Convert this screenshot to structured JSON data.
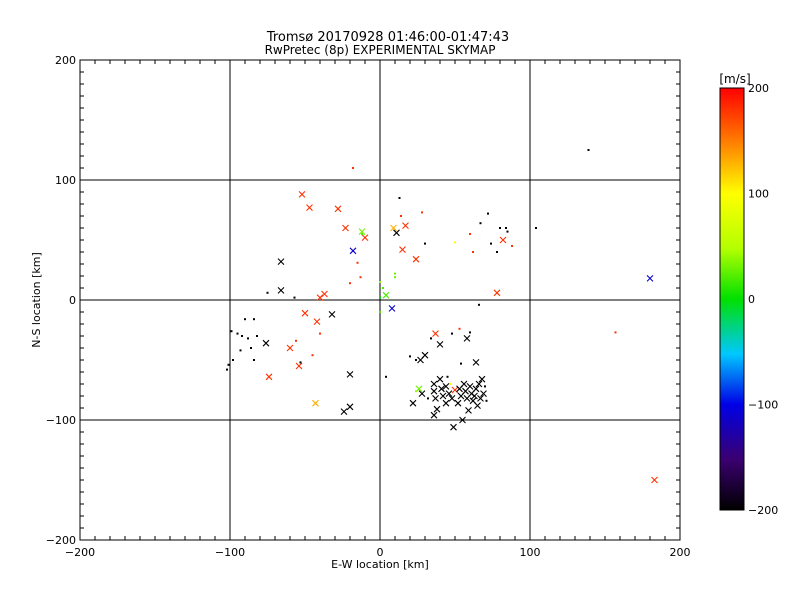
{
  "chart_data": {
    "type": "scatter",
    "title": "Tromsø 20170928 01:46:00-01:47:43",
    "subtitle": "RwPretec (8p) EXPERIMENTAL SKYMAP",
    "xlabel": "E-W location [km]",
    "ylabel": "N-S location [km]",
    "xlim": [
      -200,
      200
    ],
    "ylim": [
      -200,
      200
    ],
    "xticks": [
      -200,
      -100,
      0,
      100,
      200
    ],
    "yticks": [
      -200,
      -100,
      0,
      100,
      200
    ],
    "xtick_labels": [
      "−200",
      "−100",
      "0",
      "100",
      "200"
    ],
    "ytick_labels": [
      "−200",
      "−100",
      "0",
      "100",
      "200"
    ],
    "grid": true,
    "colorbar": {
      "label": "[m/s]",
      "range": [
        -200,
        200
      ],
      "ticks": [
        200,
        100,
        0,
        -100,
        -200
      ],
      "tick_labels": [
        "200",
        "100",
        "0",
        "−100",
        "−200"
      ]
    },
    "points": [
      {
        "x": -52,
        "y": 88,
        "v": 180,
        "m": "x"
      },
      {
        "x": -47,
        "y": 77,
        "v": 180,
        "m": "x"
      },
      {
        "x": -28,
        "y": 76,
        "v": 180,
        "m": "x"
      },
      {
        "x": -23,
        "y": 60,
        "v": 180,
        "m": "x"
      },
      {
        "x": -18,
        "y": 41,
        "v": -110,
        "m": "x"
      },
      {
        "x": -18,
        "y": 110,
        "v": 180,
        "m": "d"
      },
      {
        "x": -12,
        "y": 57,
        "v": 30,
        "m": "x"
      },
      {
        "x": -10,
        "y": 52,
        "v": 180,
        "m": "x"
      },
      {
        "x": -12,
        "y": 55,
        "v": 20,
        "m": "d"
      },
      {
        "x": -15,
        "y": 31,
        "v": 180,
        "m": "d"
      },
      {
        "x": -13,
        "y": 19,
        "v": 180,
        "m": "d"
      },
      {
        "x": -20,
        "y": 14,
        "v": 180,
        "m": "d"
      },
      {
        "x": 9,
        "y": 60,
        "v": 130,
        "m": "x"
      },
      {
        "x": 11,
        "y": 56,
        "v": -200,
        "m": "x"
      },
      {
        "x": 13,
        "y": 85,
        "v": -200,
        "m": "d"
      },
      {
        "x": 14,
        "y": 70,
        "v": 180,
        "m": "d"
      },
      {
        "x": 17,
        "y": 62,
        "v": 180,
        "m": "x"
      },
      {
        "x": 15,
        "y": 42,
        "v": 180,
        "m": "x"
      },
      {
        "x": 24,
        "y": 34,
        "v": 180,
        "m": "x"
      },
      {
        "x": 28,
        "y": 73,
        "v": 180,
        "m": "d"
      },
      {
        "x": 30,
        "y": 47,
        "v": -200,
        "m": "d"
      },
      {
        "x": 10,
        "y": 19,
        "v": 30,
        "m": "d"
      },
      {
        "x": 10,
        "y": 22,
        "v": 30,
        "m": "d"
      },
      {
        "x": 4,
        "y": 4,
        "v": 20,
        "m": "x"
      },
      {
        "x": 8,
        "y": -7,
        "v": -110,
        "m": "x"
      },
      {
        "x": 0,
        "y": 2,
        "v": 0,
        "m": "d"
      },
      {
        "x": 2,
        "y": 10,
        "v": 20,
        "m": "d"
      },
      {
        "x": 0,
        "y": -10,
        "v": 20,
        "m": "d"
      },
      {
        "x": 0,
        "y": 15,
        "v": 40,
        "m": "d"
      },
      {
        "x": 50,
        "y": 48,
        "v": 100,
        "m": "d"
      },
      {
        "x": 60,
        "y": 55,
        "v": 180,
        "m": "d"
      },
      {
        "x": 62,
        "y": 40,
        "v": 180,
        "m": "d"
      },
      {
        "x": 67,
        "y": 64,
        "v": -200,
        "m": "d"
      },
      {
        "x": 72,
        "y": 72,
        "v": -200,
        "m": "d"
      },
      {
        "x": 74,
        "y": 47,
        "v": -200,
        "m": "d"
      },
      {
        "x": 78,
        "y": 40,
        "v": -200,
        "m": "d"
      },
      {
        "x": 82,
        "y": 50,
        "v": 180,
        "m": "x"
      },
      {
        "x": 84,
        "y": 60,
        "v": -200,
        "m": "d"
      },
      {
        "x": 85,
        "y": 57,
        "v": -200,
        "m": "d"
      },
      {
        "x": 80,
        "y": 60,
        "v": -200,
        "m": "d"
      },
      {
        "x": 88,
        "y": 45,
        "v": 180,
        "m": "d"
      },
      {
        "x": 104,
        "y": 60,
        "v": -200,
        "m": "d"
      },
      {
        "x": 78,
        "y": 6,
        "v": 180,
        "m": "x"
      },
      {
        "x": 139,
        "y": 125,
        "v": -200,
        "m": "d"
      },
      {
        "x": 180,
        "y": 18,
        "v": -110,
        "m": "x"
      },
      {
        "x": 157,
        "y": -27,
        "v": 180,
        "m": "d"
      },
      {
        "x": 183,
        "y": -150,
        "v": 180,
        "m": "x"
      },
      {
        "x": -66,
        "y": 32,
        "v": -200,
        "m": "x"
      },
      {
        "x": -66,
        "y": 8,
        "v": -200,
        "m": "x"
      },
      {
        "x": -75,
        "y": 6,
        "v": -200,
        "m": "d"
      },
      {
        "x": -57,
        "y": 2,
        "v": -200,
        "m": "d"
      },
      {
        "x": -40,
        "y": 2,
        "v": 180,
        "m": "x"
      },
      {
        "x": -37,
        "y": 5,
        "v": 180,
        "m": "x"
      },
      {
        "x": -50,
        "y": -11,
        "v": 180,
        "m": "x"
      },
      {
        "x": -42,
        "y": -18,
        "v": 180,
        "m": "x"
      },
      {
        "x": -32,
        "y": -12,
        "v": -200,
        "m": "x"
      },
      {
        "x": -40,
        "y": -28,
        "v": 180,
        "m": "d"
      },
      {
        "x": -56,
        "y": -34,
        "v": 180,
        "m": "d"
      },
      {
        "x": -60,
        "y": -40,
        "v": 180,
        "m": "x"
      },
      {
        "x": -54,
        "y": -55,
        "v": 180,
        "m": "x"
      },
      {
        "x": -53,
        "y": -52,
        "v": -200,
        "m": "d"
      },
      {
        "x": -45,
        "y": -46,
        "v": 180,
        "m": "d"
      },
      {
        "x": -76,
        "y": -36,
        "v": -200,
        "m": "x"
      },
      {
        "x": -74,
        "y": -64,
        "v": 180,
        "m": "x"
      },
      {
        "x": -99,
        "y": -26,
        "v": -200,
        "m": "d"
      },
      {
        "x": -95,
        "y": -28,
        "v": -200,
        "m": "d"
      },
      {
        "x": -92,
        "y": -30,
        "v": -200,
        "m": "d"
      },
      {
        "x": -88,
        "y": -32,
        "v": -200,
        "m": "d"
      },
      {
        "x": -82,
        "y": -30,
        "v": -200,
        "m": "d"
      },
      {
        "x": -90,
        "y": -16,
        "v": -200,
        "m": "d"
      },
      {
        "x": -84,
        "y": -16,
        "v": -200,
        "m": "d"
      },
      {
        "x": -86,
        "y": -40,
        "v": -200,
        "m": "d"
      },
      {
        "x": -93,
        "y": -42,
        "v": -200,
        "m": "d"
      },
      {
        "x": -98,
        "y": -50,
        "v": -200,
        "m": "d"
      },
      {
        "x": -101,
        "y": -54,
        "v": -200,
        "m": "d"
      },
      {
        "x": -102,
        "y": -58,
        "v": -200,
        "m": "d"
      },
      {
        "x": -84,
        "y": -50,
        "v": -200,
        "m": "d"
      },
      {
        "x": -24,
        "y": -93,
        "v": -200,
        "m": "x"
      },
      {
        "x": -20,
        "y": -89,
        "v": -200,
        "m": "x"
      },
      {
        "x": -20,
        "y": -62,
        "v": -200,
        "m": "x"
      },
      {
        "x": -43,
        "y": -86,
        "v": 130,
        "m": "x"
      },
      {
        "x": 4,
        "y": -64,
        "v": -200,
        "m": "d"
      },
      {
        "x": 20,
        "y": -47,
        "v": -200,
        "m": "d"
      },
      {
        "x": 24,
        "y": -50,
        "v": -200,
        "m": "d"
      },
      {
        "x": 27,
        "y": -50,
        "v": -200,
        "m": "x"
      },
      {
        "x": 30,
        "y": -46,
        "v": -200,
        "m": "x"
      },
      {
        "x": 34,
        "y": -32,
        "v": -200,
        "m": "d"
      },
      {
        "x": 37,
        "y": -28,
        "v": 180,
        "m": "x"
      },
      {
        "x": 40,
        "y": -37,
        "v": -200,
        "m": "x"
      },
      {
        "x": 48,
        "y": -28,
        "v": -200,
        "m": "d"
      },
      {
        "x": 53,
        "y": -24,
        "v": 180,
        "m": "d"
      },
      {
        "x": 58,
        "y": -32,
        "v": -200,
        "m": "x"
      },
      {
        "x": 60,
        "y": -27,
        "v": -200,
        "m": "d"
      },
      {
        "x": 66,
        "y": -4,
        "v": -200,
        "m": "d"
      },
      {
        "x": 64,
        "y": -52,
        "v": -200,
        "m": "x"
      },
      {
        "x": 54,
        "y": -53,
        "v": -200,
        "m": "d"
      },
      {
        "x": 26,
        "y": -74,
        "v": 30,
        "m": "x"
      },
      {
        "x": 24,
        "y": -76,
        "v": 40,
        "m": "d"
      },
      {
        "x": 22,
        "y": -86,
        "v": -200,
        "m": "x"
      },
      {
        "x": 28,
        "y": -78,
        "v": -200,
        "m": "x"
      },
      {
        "x": 32,
        "y": -82,
        "v": -200,
        "m": "d"
      },
      {
        "x": 36,
        "y": -70,
        "v": -200,
        "m": "x"
      },
      {
        "x": 36,
        "y": -76,
        "v": -200,
        "m": "x"
      },
      {
        "x": 37,
        "y": -82,
        "v": -200,
        "m": "x"
      },
      {
        "x": 38,
        "y": -91,
        "v": -200,
        "m": "x"
      },
      {
        "x": 36,
        "y": -96,
        "v": -200,
        "m": "x"
      },
      {
        "x": 40,
        "y": -66,
        "v": -200,
        "m": "x"
      },
      {
        "x": 41,
        "y": -74,
        "v": -200,
        "m": "x"
      },
      {
        "x": 42,
        "y": -80,
        "v": -200,
        "m": "x"
      },
      {
        "x": 44,
        "y": -86,
        "v": -200,
        "m": "x"
      },
      {
        "x": 44,
        "y": -72,
        "v": -200,
        "m": "x"
      },
      {
        "x": 46,
        "y": -78,
        "v": -200,
        "m": "x"
      },
      {
        "x": 47,
        "y": -70,
        "v": 100,
        "m": "d"
      },
      {
        "x": 48,
        "y": -82,
        "v": -200,
        "m": "x"
      },
      {
        "x": 49,
        "y": -106,
        "v": -200,
        "m": "x"
      },
      {
        "x": 50,
        "y": -75,
        "v": 180,
        "m": "x"
      },
      {
        "x": 52,
        "y": -86,
        "v": -200,
        "m": "x"
      },
      {
        "x": 53,
        "y": -74,
        "v": -200,
        "m": "x"
      },
      {
        "x": 54,
        "y": -80,
        "v": -200,
        "m": "x"
      },
      {
        "x": 55,
        "y": -100,
        "v": -200,
        "m": "x"
      },
      {
        "x": 56,
        "y": -70,
        "v": -200,
        "m": "x"
      },
      {
        "x": 57,
        "y": -76,
        "v": -200,
        "m": "x"
      },
      {
        "x": 58,
        "y": -82,
        "v": -200,
        "m": "x"
      },
      {
        "x": 59,
        "y": -92,
        "v": -200,
        "m": "x"
      },
      {
        "x": 60,
        "y": -72,
        "v": -200,
        "m": "x"
      },
      {
        "x": 61,
        "y": -78,
        "v": -200,
        "m": "x"
      },
      {
        "x": 62,
        "y": -84,
        "v": -200,
        "m": "x"
      },
      {
        "x": 63,
        "y": -80,
        "v": -200,
        "m": "x"
      },
      {
        "x": 64,
        "y": -74,
        "v": -200,
        "m": "x"
      },
      {
        "x": 65,
        "y": -88,
        "v": -200,
        "m": "x"
      },
      {
        "x": 66,
        "y": -70,
        "v": -200,
        "m": "x"
      },
      {
        "x": 67,
        "y": -82,
        "v": -200,
        "m": "x"
      },
      {
        "x": 68,
        "y": -66,
        "v": -200,
        "m": "x"
      },
      {
        "x": 69,
        "y": -78,
        "v": -200,
        "m": "x"
      },
      {
        "x": 70,
        "y": -72,
        "v": -200,
        "m": "d"
      },
      {
        "x": 71,
        "y": -84,
        "v": -200,
        "m": "d"
      },
      {
        "x": 45,
        "y": -64,
        "v": -200,
        "m": "d"
      }
    ]
  }
}
